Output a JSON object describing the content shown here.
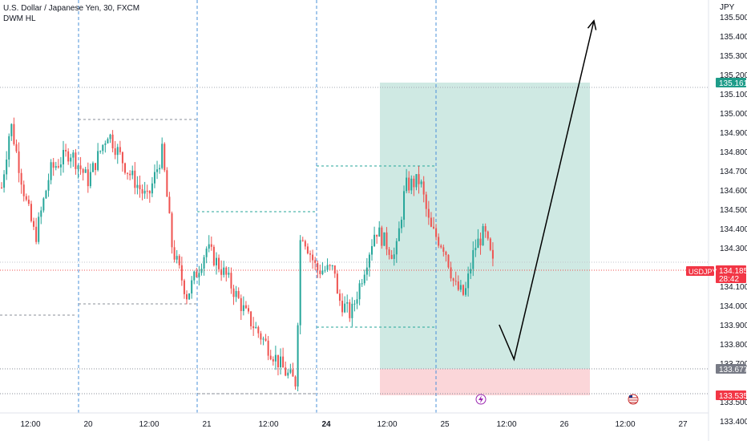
{
  "header": {
    "title": "U.S. Dollar / Japanese Yen, 30, FXCM",
    "indicator": "DWM HL"
  },
  "price_axis": {
    "unit": "JPY",
    "ticks": [
      "135.500",
      "135.400",
      "135.300",
      "135.200",
      "135.100",
      "135.000",
      "134.900",
      "134.800",
      "134.700",
      "134.600",
      "134.500",
      "134.400",
      "134.300",
      "134.100",
      "134.000",
      "133.900",
      "133.800",
      "133.700",
      "133.500",
      "133.400"
    ]
  },
  "time_axis": {
    "ticks": [
      "12:00",
      "20",
      "12:00",
      "21",
      "12:00",
      "24",
      "12:00",
      "25",
      "12:00",
      "26",
      "12:00",
      "27"
    ],
    "bold_tick": "24"
  },
  "labels": {
    "target": "135.161",
    "current_symbol": "USDJPY",
    "current_price": "134.185",
    "countdown": "28:42",
    "stop": "133.677",
    "low": "133.535"
  },
  "colors": {
    "up": "#26a69a",
    "down": "#ef5350",
    "profit_zone": "#cfe9e3",
    "loss_zone": "#fbd6d9",
    "session_line": "#4a90d9",
    "level_line": "#8a8f99"
  },
  "chart_data": {
    "type": "candlestick",
    "title": "U.S. Dollar / Japanese Yen, 30, FXCM",
    "symbol": "USDJPY",
    "y_range": [
      133.35,
      135.6
    ],
    "x_range": [
      "19 06:00",
      "27 12:00"
    ],
    "key_levels": {
      "target": 135.161,
      "current": 134.185,
      "stop": 133.677,
      "low": 133.535
    },
    "price_path": [
      {
        "t": "19 05:00",
        "p": 134.4
      },
      {
        "t": "19 08:00",
        "p": 134.95
      },
      {
        "t": "19 11:00",
        "p": 134.55
      },
      {
        "t": "19 13:00",
        "p": 134.35
      },
      {
        "t": "19 16:00",
        "p": 134.7
      },
      {
        "t": "19 20:00",
        "p": 134.8
      },
      {
        "t": "20 00:00",
        "p": 134.65
      },
      {
        "t": "20 04:00",
        "p": 134.9
      },
      {
        "t": "20 08:00",
        "p": 134.7
      },
      {
        "t": "20 12:00",
        "p": 134.55
      },
      {
        "t": "20 15:00",
        "p": 134.8
      },
      {
        "t": "20 17:00",
        "p": 134.3
      },
      {
        "t": "20 20:00",
        "p": 134.05
      },
      {
        "t": "21 00:00",
        "p": 134.3
      },
      {
        "t": "21 04:00",
        "p": 134.15
      },
      {
        "t": "21 08:00",
        "p": 133.95
      },
      {
        "t": "21 12:00",
        "p": 133.8
      },
      {
        "t": "21 16:00",
        "p": 133.65
      },
      {
        "t": "21 18:00",
        "p": 133.6
      },
      {
        "t": "21 19:00",
        "p": 134.4
      },
      {
        "t": "21 22:00",
        "p": 134.2
      },
      {
        "t": "22 00:00",
        "p": 134.2
      },
      {
        "t": "24 02:00",
        "p": 134.05
      },
      {
        "t": "24 05:00",
        "p": 133.95
      },
      {
        "t": "24 10:00",
        "p": 134.4
      },
      {
        "t": "24 14:00",
        "p": 134.25
      },
      {
        "t": "24 16:00",
        "p": 134.62
      },
      {
        "t": "24 19:00",
        "p": 134.65
      },
      {
        "t": "24 21:00",
        "p": 134.4
      },
      {
        "t": "25 00:00",
        "p": 134.3
      },
      {
        "t": "25 02:00",
        "p": 134.1
      },
      {
        "t": "25 04:00",
        "p": 134.05
      },
      {
        "t": "25 06:00",
        "p": 134.3
      },
      {
        "t": "25 08:00",
        "p": 134.38
      },
      {
        "t": "25 10:00",
        "p": 134.185
      }
    ],
    "projection": [
      {
        "t": "25 11:00",
        "p": 133.9
      },
      {
        "t": "25 14:00",
        "p": 133.72
      },
      {
        "t": "26 06:00",
        "p": 135.48
      }
    ]
  }
}
